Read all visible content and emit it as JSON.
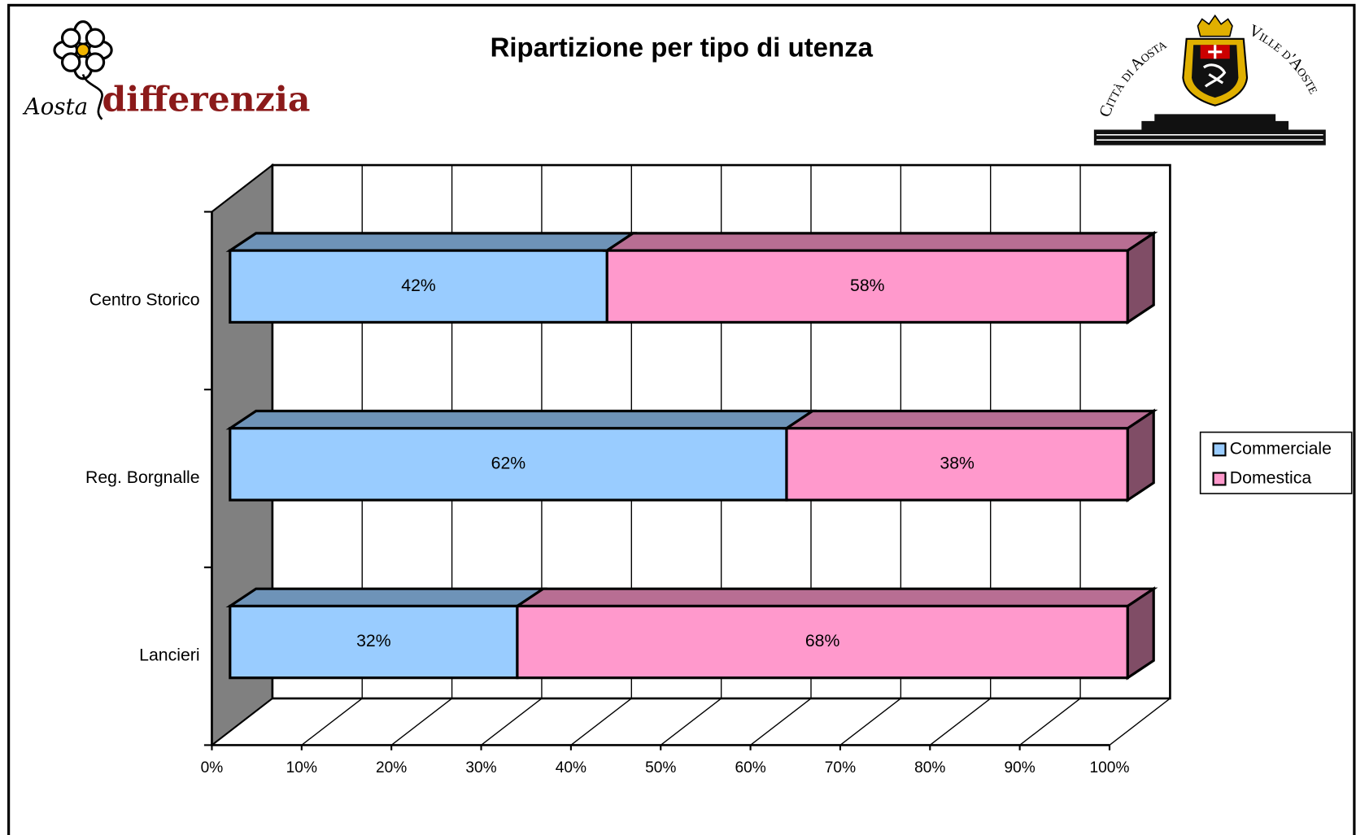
{
  "chart_data": {
    "type": "bar3d_stacked_horizontal",
    "title": "Ripartizione per tipo di utenza",
    "categories": [
      "Centro Storico",
      "Reg. Borgnalle",
      "Lancieri"
    ],
    "series": [
      {
        "name": "Commerciale",
        "color": "#99ccff",
        "values": [
          42,
          62,
          32
        ],
        "value_labels": [
          "42%",
          "62%",
          "32%"
        ]
      },
      {
        "name": "Domestica",
        "color": "#ff99cc",
        "values": [
          58,
          38,
          68
        ],
        "value_labels": [
          "58%",
          "38%",
          "68%"
        ]
      }
    ],
    "xlim": [
      0,
      100
    ],
    "xticks": [
      {
        "value": 0,
        "label": "0%"
      },
      {
        "value": 10,
        "label": "10%"
      },
      {
        "value": 20,
        "label": "20%"
      },
      {
        "value": 30,
        "label": "30%"
      },
      {
        "value": 40,
        "label": "40%"
      },
      {
        "value": 50,
        "label": "50%"
      },
      {
        "value": 60,
        "label": "60%"
      },
      {
        "value": 70,
        "label": "70%"
      },
      {
        "value": 80,
        "label": "80%"
      },
      {
        "value": 90,
        "label": "90%"
      },
      {
        "value": 100,
        "label": "100%"
      }
    ],
    "grid": true,
    "legend": "right"
  },
  "logos": {
    "left": {
      "prefix": "Aosta",
      "name": "differenzia"
    },
    "right": {
      "arc_left": "Città di Aosta",
      "arc_right": "Ville d'Aoste"
    }
  }
}
